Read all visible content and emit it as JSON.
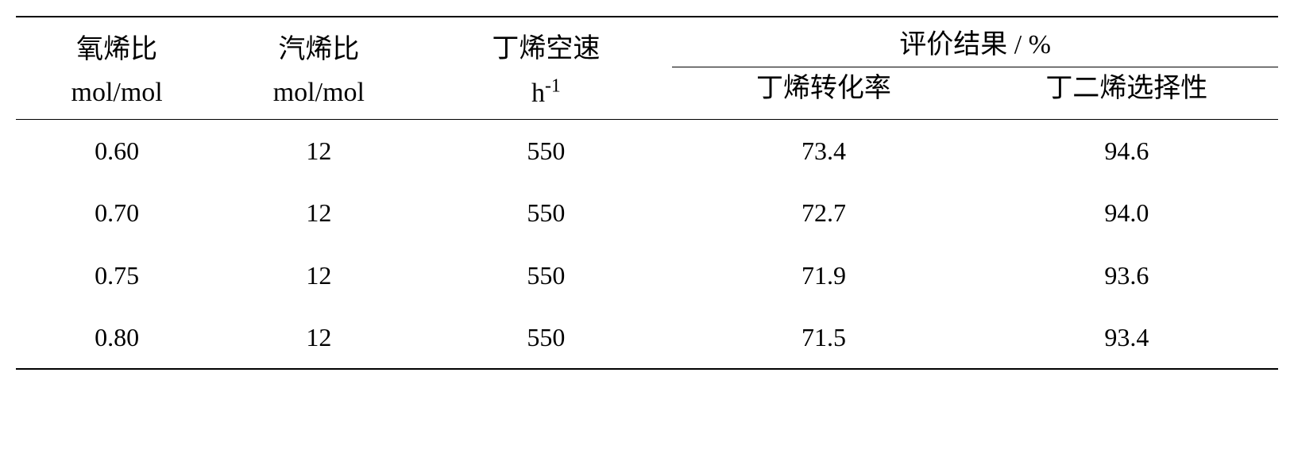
{
  "table": {
    "type": "table",
    "background_color": "#ffffff",
    "text_color": "#000000",
    "border_color": "#000000",
    "border_width_outer": 2,
    "border_width_inner": 1.5,
    "header_fontsize": 34,
    "cell_fontsize": 32,
    "font_family": "SimSun, Times New Roman, serif",
    "column_widths_pct": [
      16,
      16,
      20,
      24,
      24
    ],
    "headers": {
      "col1_line1": "氧烯比",
      "col1_line2": "mol/mol",
      "col2_line1": "汽烯比",
      "col2_line2": "mol/mol",
      "col3_line1": "丁烯空速",
      "col3_line2_html": "h<sup>-1</sup>",
      "group_label": "评价结果 / %",
      "col4_line2": "丁烯转化率",
      "col5_line2": "丁二烯选择性"
    },
    "rows": [
      {
        "c1": "0.60",
        "c2": "12",
        "c3": "550",
        "c4": "73.4",
        "c5": "94.6"
      },
      {
        "c1": "0.70",
        "c2": "12",
        "c3": "550",
        "c4": "72.7",
        "c5": "94.0"
      },
      {
        "c1": "0.75",
        "c2": "12",
        "c3": "550",
        "c4": "71.9",
        "c5": "93.6"
      },
      {
        "c1": "0.80",
        "c2": "12",
        "c3": "550",
        "c4": "71.5",
        "c5": "93.4"
      }
    ]
  }
}
